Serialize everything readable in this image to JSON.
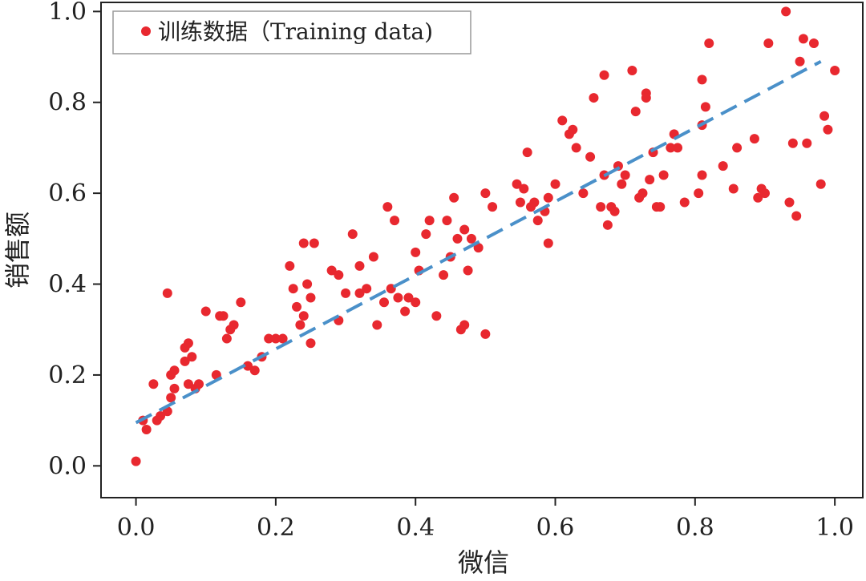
{
  "chart_data": {
    "type": "scatter",
    "xlabel": "微信",
    "ylabel": "销售额",
    "xlim": [
      -0.05,
      1.04
    ],
    "ylim": [
      -0.07,
      1.02
    ],
    "x_ticks": [
      "0.0",
      "0.2",
      "0.4",
      "0.6",
      "0.8",
      "1.0"
    ],
    "y_ticks": [
      "0.0",
      "0.2",
      "0.4",
      "0.6",
      "0.8",
      "1.0"
    ],
    "grid": false,
    "legend_position": "top-left",
    "series": [
      {
        "name": "训练数据（Training data)",
        "color": "#e8282f",
        "points": [
          [
            0.0,
            0.01
          ],
          [
            0.01,
            0.1
          ],
          [
            0.015,
            0.08
          ],
          [
            0.025,
            0.18
          ],
          [
            0.03,
            0.1
          ],
          [
            0.035,
            0.11
          ],
          [
            0.045,
            0.12
          ],
          [
            0.045,
            0.38
          ],
          [
            0.05,
            0.2
          ],
          [
            0.05,
            0.15
          ],
          [
            0.055,
            0.17
          ],
          [
            0.055,
            0.21
          ],
          [
            0.07,
            0.26
          ],
          [
            0.07,
            0.23
          ],
          [
            0.075,
            0.27
          ],
          [
            0.075,
            0.18
          ],
          [
            0.08,
            0.24
          ],
          [
            0.085,
            0.17
          ],
          [
            0.09,
            0.18
          ],
          [
            0.1,
            0.34
          ],
          [
            0.115,
            0.2
          ],
          [
            0.12,
            0.33
          ],
          [
            0.125,
            0.33
          ],
          [
            0.13,
            0.28
          ],
          [
            0.135,
            0.3
          ],
          [
            0.14,
            0.31
          ],
          [
            0.15,
            0.36
          ],
          [
            0.16,
            0.22
          ],
          [
            0.17,
            0.21
          ],
          [
            0.18,
            0.24
          ],
          [
            0.19,
            0.28
          ],
          [
            0.2,
            0.28
          ],
          [
            0.21,
            0.28
          ],
          [
            0.22,
            0.44
          ],
          [
            0.225,
            0.39
          ],
          [
            0.23,
            0.35
          ],
          [
            0.235,
            0.31
          ],
          [
            0.24,
            0.33
          ],
          [
            0.24,
            0.49
          ],
          [
            0.245,
            0.4
          ],
          [
            0.25,
            0.37
          ],
          [
            0.25,
            0.27
          ],
          [
            0.255,
            0.49
          ],
          [
            0.28,
            0.43
          ],
          [
            0.29,
            0.42
          ],
          [
            0.29,
            0.32
          ],
          [
            0.3,
            0.38
          ],
          [
            0.31,
            0.51
          ],
          [
            0.32,
            0.38
          ],
          [
            0.32,
            0.44
          ],
          [
            0.33,
            0.39
          ],
          [
            0.34,
            0.46
          ],
          [
            0.345,
            0.31
          ],
          [
            0.355,
            0.36
          ],
          [
            0.36,
            0.57
          ],
          [
            0.365,
            0.39
          ],
          [
            0.37,
            0.54
          ],
          [
            0.375,
            0.37
          ],
          [
            0.385,
            0.34
          ],
          [
            0.39,
            0.37
          ],
          [
            0.4,
            0.36
          ],
          [
            0.4,
            0.47
          ],
          [
            0.405,
            0.43
          ],
          [
            0.415,
            0.51
          ],
          [
            0.42,
            0.54
          ],
          [
            0.43,
            0.33
          ],
          [
            0.44,
            0.42
          ],
          [
            0.445,
            0.54
          ],
          [
            0.45,
            0.46
          ],
          [
            0.455,
            0.59
          ],
          [
            0.46,
            0.5
          ],
          [
            0.465,
            0.3
          ],
          [
            0.47,
            0.31
          ],
          [
            0.47,
            0.52
          ],
          [
            0.475,
            0.43
          ],
          [
            0.48,
            0.5
          ],
          [
            0.49,
            0.48
          ],
          [
            0.5,
            0.29
          ],
          [
            0.5,
            0.6
          ],
          [
            0.51,
            0.57
          ],
          [
            0.545,
            0.62
          ],
          [
            0.55,
            0.58
          ],
          [
            0.555,
            0.61
          ],
          [
            0.56,
            0.69
          ],
          [
            0.565,
            0.57
          ],
          [
            0.57,
            0.58
          ],
          [
            0.575,
            0.54
          ],
          [
            0.585,
            0.56
          ],
          [
            0.59,
            0.49
          ],
          [
            0.59,
            0.59
          ],
          [
            0.6,
            0.62
          ],
          [
            0.61,
            0.76
          ],
          [
            0.62,
            0.73
          ],
          [
            0.625,
            0.74
          ],
          [
            0.63,
            0.7
          ],
          [
            0.64,
            0.6
          ],
          [
            0.65,
            0.68
          ],
          [
            0.655,
            0.81
          ],
          [
            0.665,
            0.57
          ],
          [
            0.67,
            0.86
          ],
          [
            0.67,
            0.64
          ],
          [
            0.675,
            0.53
          ],
          [
            0.68,
            0.57
          ],
          [
            0.685,
            0.56
          ],
          [
            0.69,
            0.66
          ],
          [
            0.695,
            0.62
          ],
          [
            0.7,
            0.64
          ],
          [
            0.71,
            0.87
          ],
          [
            0.715,
            0.78
          ],
          [
            0.72,
            0.59
          ],
          [
            0.725,
            0.6
          ],
          [
            0.73,
            0.82
          ],
          [
            0.73,
            0.81
          ],
          [
            0.735,
            0.63
          ],
          [
            0.74,
            0.69
          ],
          [
            0.745,
            0.57
          ],
          [
            0.75,
            0.57
          ],
          [
            0.755,
            0.64
          ],
          [
            0.765,
            0.7
          ],
          [
            0.77,
            0.73
          ],
          [
            0.775,
            0.7
          ],
          [
            0.785,
            0.58
          ],
          [
            0.805,
            0.6
          ],
          [
            0.81,
            0.85
          ],
          [
            0.81,
            0.75
          ],
          [
            0.81,
            0.64
          ],
          [
            0.815,
            0.79
          ],
          [
            0.82,
            0.93
          ],
          [
            0.84,
            0.66
          ],
          [
            0.855,
            0.61
          ],
          [
            0.86,
            0.7
          ],
          [
            0.885,
            0.72
          ],
          [
            0.89,
            0.59
          ],
          [
            0.895,
            0.61
          ],
          [
            0.9,
            0.6
          ],
          [
            0.905,
            0.93
          ],
          [
            0.93,
            1.0
          ],
          [
            0.935,
            0.58
          ],
          [
            0.94,
            0.71
          ],
          [
            0.945,
            0.55
          ],
          [
            0.95,
            0.89
          ],
          [
            0.955,
            0.94
          ],
          [
            0.96,
            0.71
          ],
          [
            0.97,
            0.93
          ],
          [
            0.98,
            0.62
          ],
          [
            0.985,
            0.77
          ],
          [
            0.99,
            0.74
          ],
          [
            1.0,
            0.87
          ]
        ]
      },
      {
        "type": "line",
        "style": "dashed",
        "color": "#4a90c9",
        "points": [
          [
            0.0,
            0.095
          ],
          [
            0.98,
            0.89
          ]
        ]
      }
    ]
  }
}
